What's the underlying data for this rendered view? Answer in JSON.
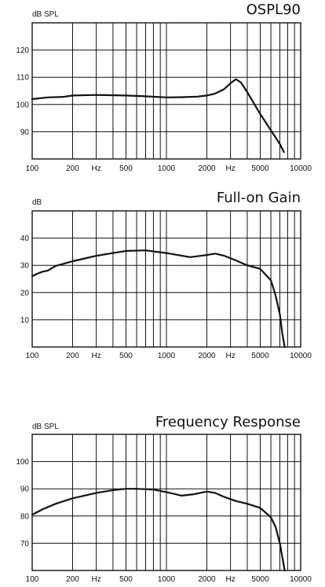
{
  "chart_data": [
    {
      "type": "line",
      "title": "OSPL90",
      "ylabel": "dB SPL",
      "xscale": "log",
      "xlim": [
        100,
        10000
      ],
      "ylim": [
        80,
        130
      ],
      "yticks": [
        90,
        100,
        110,
        120
      ],
      "xtick_labels": [
        {
          "value": 100,
          "label": "100"
        },
        {
          "value": 200,
          "label": "200"
        },
        {
          "value": 300,
          "label": "Hz"
        },
        {
          "value": 500,
          "label": "500"
        },
        {
          "value": 1000,
          "label": "1000"
        },
        {
          "value": 2000,
          "label": "2000"
        },
        {
          "value": 3000,
          "label": "Hz"
        },
        {
          "value": 5000,
          "label": "5000"
        },
        {
          "value": 10000,
          "label": "10000"
        }
      ],
      "grid": true,
      "series": [
        {
          "x": [
            100,
            130,
            170,
            200,
            300,
            500,
            700,
            1000,
            1300,
            1700,
            2000,
            2300,
            2700,
            3000,
            3300,
            3600,
            4000,
            5000,
            6000,
            7000,
            7500
          ],
          "y": [
            102,
            102.6,
            102.8,
            103.3,
            103.5,
            103.3,
            103,
            102.6,
            102.7,
            102.9,
            103.3,
            104,
            105.7,
            107.8,
            109.3,
            108,
            104.5,
            96.5,
            90.5,
            85.5,
            82.5
          ]
        }
      ]
    },
    {
      "type": "line",
      "title": "Full-on Gain",
      "ylabel": "dB",
      "xscale": "log",
      "xlim": [
        100,
        10000
      ],
      "ylim": [
        0,
        50
      ],
      "yticks": [
        10,
        20,
        30,
        40
      ],
      "xtick_labels": [
        {
          "value": 100,
          "label": "100"
        },
        {
          "value": 200,
          "label": "200"
        },
        {
          "value": 300,
          "label": "Hz"
        },
        {
          "value": 500,
          "label": "500"
        },
        {
          "value": 1000,
          "label": "1000"
        },
        {
          "value": 2000,
          "label": "2000"
        },
        {
          "value": 3000,
          "label": "Hz"
        },
        {
          "value": 5000,
          "label": "5000"
        },
        {
          "value": 10000,
          "label": "10000"
        }
      ],
      "grid": true,
      "series": [
        {
          "x": [
            100,
            110,
            120,
            130,
            150,
            200,
            300,
            400,
            500,
            700,
            1000,
            1500,
            2000,
            2300,
            2700,
            3300,
            4000,
            5000,
            6000,
            6500,
            7000,
            7300,
            7600
          ],
          "y": [
            26,
            27,
            27.7,
            28,
            29.8,
            31.5,
            33.5,
            34.5,
            35.3,
            35.5,
            34.5,
            33,
            33.8,
            34.3,
            33.5,
            31.8,
            30,
            28.7,
            24.5,
            19,
            12,
            5,
            0
          ]
        }
      ]
    },
    {
      "type": "line",
      "title": "Frequency Response",
      "ylabel": "dB SPL",
      "xscale": "log",
      "xlim": [
        100,
        10000
      ],
      "ylim": [
        60,
        110
      ],
      "yticks": [
        70,
        80,
        90,
        100
      ],
      "xtick_labels": [
        {
          "value": 100,
          "label": "100"
        },
        {
          "value": 200,
          "label": "200"
        },
        {
          "value": 300,
          "label": "Hz"
        },
        {
          "value": 500,
          "label": "500"
        },
        {
          "value": 1000,
          "label": "1000"
        },
        {
          "value": 2000,
          "label": "2000"
        },
        {
          "value": 3000,
          "label": "Hz"
        },
        {
          "value": 5000,
          "label": "5000"
        },
        {
          "value": 10000,
          "label": "10000"
        }
      ],
      "grid": true,
      "series": [
        {
          "x": [
            100,
            120,
            150,
            200,
            300,
            400,
            500,
            600,
            800,
            1000,
            1300,
            1600,
            2000,
            2300,
            2700,
            3300,
            4000,
            5000,
            6000,
            6500,
            7000,
            7300,
            7600
          ],
          "y": [
            80.5,
            82.5,
            84.5,
            86.5,
            88.5,
            89.5,
            90,
            90,
            89.7,
            88.8,
            87.5,
            88,
            89,
            88.5,
            87,
            85.5,
            84.5,
            83,
            79.5,
            76,
            70,
            65,
            60
          ]
        }
      ]
    }
  ]
}
